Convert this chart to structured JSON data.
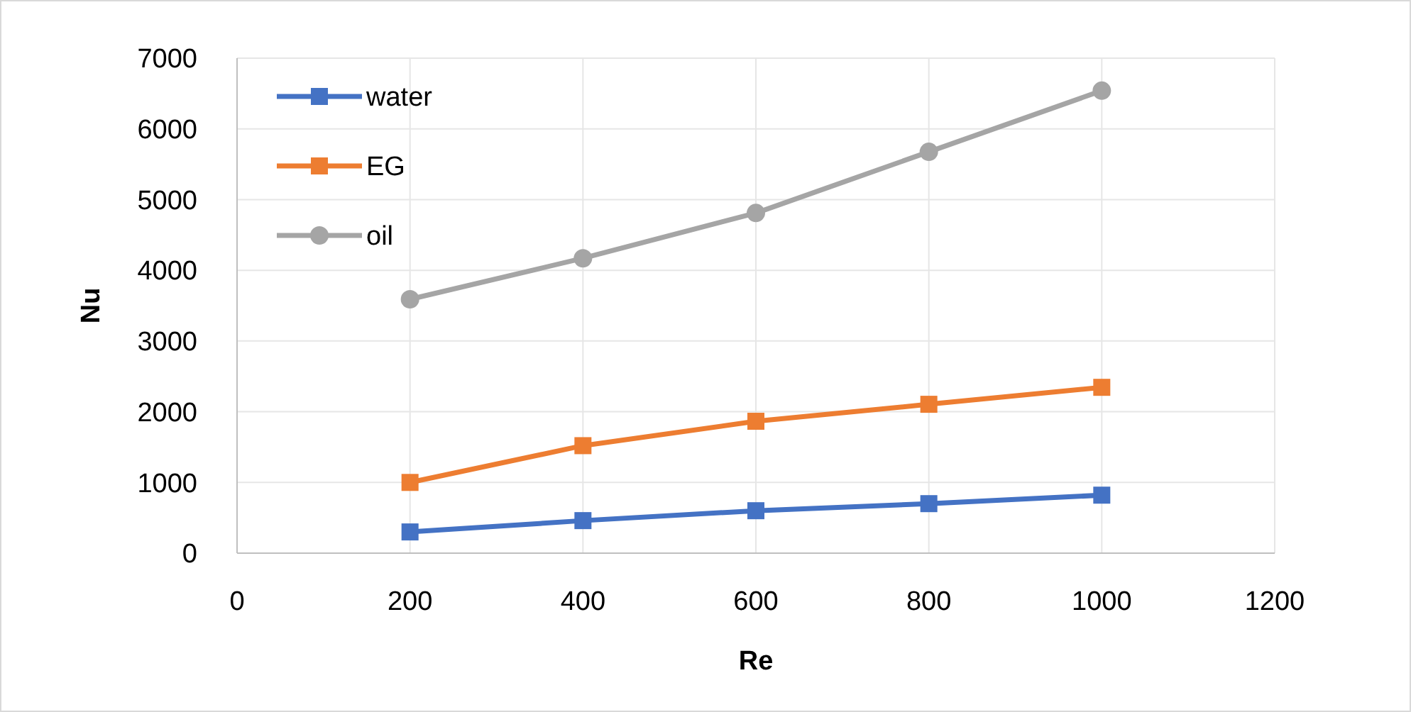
{
  "chart_data": {
    "type": "line",
    "xlabel": "Re",
    "ylabel": "Nu",
    "xlim": [
      0,
      1200
    ],
    "xticks": [
      0,
      200,
      400,
      600,
      800,
      1000,
      1200
    ],
    "ylim": [
      0,
      7000
    ],
    "yticks": [
      0,
      1000,
      2000,
      3000,
      4000,
      5000,
      6000,
      7000
    ],
    "grid": true,
    "legend": "top left",
    "x": [
      200,
      400,
      600,
      800,
      1000
    ],
    "series": [
      {
        "name": "water",
        "color": "#4472c4",
        "marker": "square",
        "values": [
          300,
          460,
          600,
          700,
          820
        ]
      },
      {
        "name": "EG",
        "color": "#ed7d31",
        "marker": "square",
        "values": [
          1000,
          1520,
          1865,
          2105,
          2345
        ]
      },
      {
        "name": "oil",
        "color": "#a5a5a5",
        "marker": "circle",
        "values": [
          3590,
          4170,
          4810,
          5675,
          6540
        ]
      }
    ]
  }
}
